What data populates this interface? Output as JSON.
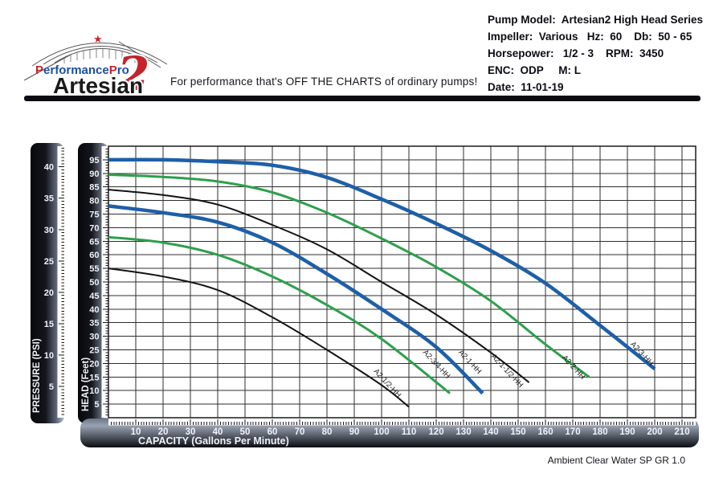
{
  "header": {
    "brand": {
      "performancepro": {
        "p1": "P",
        "mid": "erformance",
        "p2": "P",
        "end": "ro"
      },
      "artesian": "Artesian",
      "numeral": "2"
    },
    "tagline": "For performance that's OFF THE CHARTS of ordinary pumps!",
    "specs_lines": [
      "Pump Model:  Artesian2 High Head Series",
      "Impeller:  Various   Hz:  60    Db:  50 - 65",
      "Horsepower:   1/2 - 3    RPM:  3450",
      "ENC:  ODP     M: L",
      "Date:  11-01-19"
    ]
  },
  "colors": {
    "curve_blue": "#1e5fa8",
    "curve_green": "#2da04c",
    "curve_black": "#131313",
    "accent_red": "#c4232b",
    "brand_blue": "#1c4fa3",
    "ruler_dark": "#0b0d12",
    "ruler_light": "#b7bfcc",
    "grid": "#2e2e2e",
    "ruler_text": "#f0f2f7"
  },
  "chart_data": {
    "type": "line",
    "xlabel": "CAPACITY (Gallons Per Minute)",
    "ylabel": "HEAD (Feet)",
    "ylabel_secondary": "PRESSURE (PSI)",
    "footnote": "Ambient Clear Water SP GR 1.0",
    "xlim": [
      0,
      215
    ],
    "ylim": [
      0,
      100
    ],
    "grid": true,
    "x_ticks": [
      10,
      20,
      30,
      40,
      50,
      60,
      70,
      80,
      90,
      100,
      110,
      120,
      130,
      140,
      150,
      160,
      170,
      180,
      190,
      200,
      210
    ],
    "head_ticks": [
      5,
      10,
      15,
      20,
      25,
      30,
      35,
      40,
      45,
      50,
      55,
      60,
      65,
      70,
      75,
      80,
      85,
      90,
      95
    ],
    "pressure_ticks": [
      5,
      10,
      15,
      20,
      25,
      30,
      35,
      40
    ],
    "psi_to_feet": 2.31,
    "series": [
      {
        "name": "A2-3-HH",
        "color": "#1e5fa8",
        "stroke_width": 4.5,
        "points": [
          [
            0,
            95
          ],
          [
            20,
            95
          ],
          [
            40,
            94.3
          ],
          [
            60,
            93
          ],
          [
            80,
            88.5
          ],
          [
            100,
            80.5
          ],
          [
            120,
            71.5
          ],
          [
            140,
            61.5
          ],
          [
            160,
            49.5
          ],
          [
            180,
            34
          ],
          [
            200,
            18
          ]
        ]
      },
      {
        "name": "A2-2-HH",
        "color": "#2da04c",
        "stroke_width": 3,
        "points": [
          [
            0,
            89.5
          ],
          [
            20,
            88.7
          ],
          [
            40,
            87
          ],
          [
            60,
            83
          ],
          [
            80,
            75.5
          ],
          [
            100,
            66
          ],
          [
            120,
            55.5
          ],
          [
            140,
            43
          ],
          [
            160,
            27
          ],
          [
            176,
            15
          ]
        ]
      },
      {
        "name": "A2-1-1/2-HH",
        "color": "#131313",
        "stroke_width": 2,
        "points": [
          [
            0,
            84
          ],
          [
            20,
            82
          ],
          [
            40,
            78.5
          ],
          [
            60,
            71
          ],
          [
            80,
            62
          ],
          [
            100,
            50
          ],
          [
            120,
            38
          ],
          [
            140,
            24
          ],
          [
            154,
            13
          ]
        ]
      },
      {
        "name": "A2-1-HH",
        "color": "#1e5fa8",
        "stroke_width": 4.5,
        "points": [
          [
            0,
            78
          ],
          [
            20,
            75.5
          ],
          [
            40,
            72
          ],
          [
            60,
            64.5
          ],
          [
            80,
            53
          ],
          [
            100,
            40
          ],
          [
            120,
            26
          ],
          [
            137,
            9
          ]
        ]
      },
      {
        "name": "A2-3/4-HH",
        "color": "#2da04c",
        "stroke_width": 3,
        "points": [
          [
            0,
            66.5
          ],
          [
            20,
            64.5
          ],
          [
            40,
            60
          ],
          [
            60,
            52
          ],
          [
            80,
            41.5
          ],
          [
            100,
            29
          ],
          [
            125,
            9
          ]
        ]
      },
      {
        "name": "A2-1/2-HH",
        "color": "#131313",
        "stroke_width": 2,
        "points": [
          [
            0,
            55
          ],
          [
            20,
            52
          ],
          [
            40,
            47
          ],
          [
            60,
            37
          ],
          [
            80,
            25
          ],
          [
            100,
            12
          ],
          [
            110,
            4
          ]
        ]
      }
    ],
    "curve_labels": [
      {
        "text": "A2-1/2-HH",
        "gpm": 97,
        "ft": 17,
        "angle": 47
      },
      {
        "text": "A2-3/4-HH",
        "gpm": 115,
        "ft": 24,
        "angle": 47
      },
      {
        "text": "A2-1-HH",
        "gpm": 128,
        "ft": 24,
        "angle": 47
      },
      {
        "text": "A2-1-1/2-HH",
        "gpm": 140,
        "ft": 22.5,
        "angle": 47
      },
      {
        "text": "A2-2-HH",
        "gpm": 166,
        "ft": 22,
        "angle": 47
      },
      {
        "text": "A2-3-HH",
        "gpm": 191,
        "ft": 27,
        "angle": 47
      }
    ]
  }
}
